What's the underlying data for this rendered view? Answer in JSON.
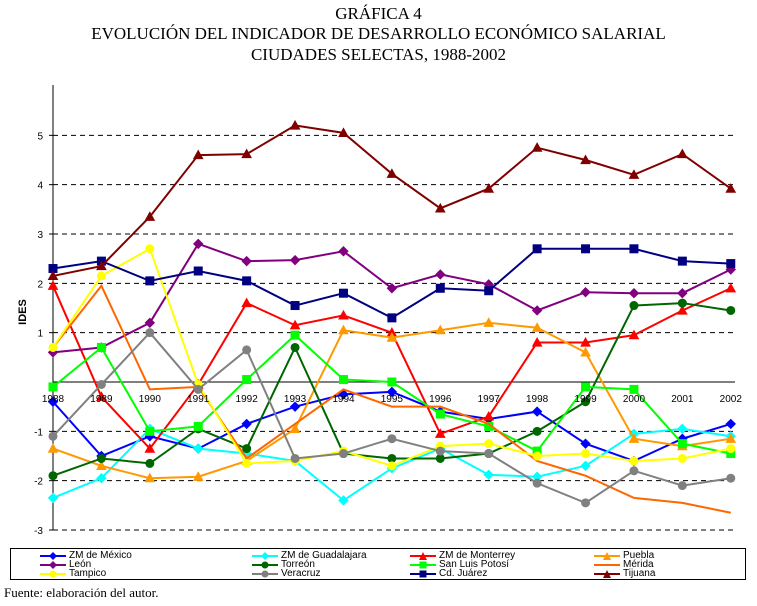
{
  "header": {
    "line1": "GRÁFICA 4",
    "line2": "EVOLUCIÓN DEL INDICADOR DE DESARROLLO ECONÓMICO SALARIAL",
    "line3": "CIUDADES SELECTAS, 1988-2002"
  },
  "footer": {
    "source": "Fuente: elaboración del autor."
  },
  "chart_data": {
    "type": "line",
    "title": "EVOLUCIÓN DEL INDICADOR DE DESARROLLO ECONÓMICO SALARIAL",
    "ylabel": "IDES",
    "xlabel": "",
    "ylim": [
      -3,
      5.5
    ],
    "yticks": [
      -3,
      -2,
      -1,
      1,
      2,
      3,
      4,
      5
    ],
    "ytick_labels": [
      "-3",
      "-2",
      "-1",
      "1",
      "2",
      "3",
      "4",
      "5"
    ],
    "grid": true,
    "categories": [
      "1988",
      "1989",
      "1990",
      "1991",
      "1992",
      "1993",
      "1994",
      "1995",
      "1996",
      "1997",
      "1998",
      "1999",
      "2000",
      "2001",
      "2002"
    ],
    "series": [
      {
        "name": "ZM de México",
        "color": "#0000FF",
        "marker": "diamond",
        "values": [
          -0.4,
          -1.5,
          -1.1,
          -1.35,
          -0.85,
          -0.5,
          -0.25,
          -0.2,
          -0.6,
          -0.75,
          -0.6,
          -1.25,
          -1.6,
          -1.15,
          -0.85
        ]
      },
      {
        "name": "ZM de Guadalajara",
        "color": "#00FFFF",
        "marker": "diamond",
        "values": [
          -2.35,
          -1.95,
          -0.95,
          -1.35,
          -1.45,
          -1.6,
          -2.4,
          -1.75,
          -1.35,
          -1.88,
          -1.92,
          -1.7,
          -1.05,
          -0.95,
          -1.1
        ]
      },
      {
        "name": "ZM de Monterrey",
        "color": "#FF0000",
        "marker": "triangle",
        "values": [
          1.95,
          -0.3,
          -1.35,
          -0.05,
          1.6,
          1.15,
          1.35,
          1.0,
          -1.05,
          -0.7,
          0.8,
          0.8,
          0.95,
          1.45,
          1.9
        ]
      },
      {
        "name": "Puebla",
        "color": "#FF9900",
        "marker": "triangle",
        "values": [
          -1.35,
          -1.7,
          -1.95,
          -1.92,
          -1.6,
          -0.95,
          1.05,
          0.9,
          1.05,
          1.2,
          1.1,
          0.6,
          -1.15,
          -1.3,
          -1.15
        ]
      },
      {
        "name": "León",
        "color": "#800080",
        "marker": "diamond",
        "values": [
          0.6,
          0.7,
          1.2,
          2.8,
          2.45,
          2.47,
          2.65,
          1.9,
          2.18,
          1.98,
          1.45,
          1.82,
          1.8,
          1.8,
          2.28
        ]
      },
      {
        "name": "Torreón",
        "color": "#006600",
        "marker": "circle",
        "values": [
          -1.9,
          -1.55,
          -1.65,
          -0.95,
          -1.35,
          0.7,
          -1.45,
          -1.55,
          -1.55,
          -1.45,
          -1.0,
          -0.4,
          1.55,
          1.6,
          1.45
        ]
      },
      {
        "name": "San Luis Potosí",
        "color": "#00FF00",
        "marker": "square",
        "values": [
          -0.1,
          0.7,
          -1.0,
          -0.9,
          0.05,
          0.95,
          0.05,
          0.0,
          -0.65,
          -0.9,
          -1.4,
          -0.1,
          -0.15,
          -1.25,
          -1.45
        ]
      },
      {
        "name": "Mérida",
        "color": "#FF6600",
        "marker": "none",
        "values": [
          0.7,
          1.95,
          -0.15,
          -0.1,
          -1.55,
          -0.85,
          -0.15,
          -0.5,
          -0.5,
          -0.85,
          -1.6,
          -1.9,
          -2.35,
          -2.45,
          -2.65
        ]
      },
      {
        "name": "Tampico",
        "color": "#FFFF00",
        "marker": "circle",
        "values": [
          0.7,
          2.15,
          2.7,
          -0.05,
          -1.65,
          -1.6,
          -1.4,
          -1.7,
          -1.3,
          -1.25,
          -1.5,
          -1.45,
          -1.6,
          -1.55,
          -1.35
        ]
      },
      {
        "name": "Veracruz",
        "color": "#808080",
        "marker": "circle",
        "values": [
          -1.1,
          -0.05,
          1.0,
          -0.15,
          0.65,
          -1.55,
          -1.45,
          -1.15,
          -1.4,
          -1.45,
          -2.05,
          -2.45,
          -1.8,
          -2.1,
          -1.95
        ]
      },
      {
        "name": "Cd. Juárez",
        "color": "#000080",
        "marker": "square",
        "values": [
          2.3,
          2.45,
          2.05,
          2.25,
          2.05,
          1.55,
          1.8,
          1.3,
          1.9,
          1.85,
          2.7,
          2.7,
          2.7,
          2.45,
          2.4
        ]
      },
      {
        "name": "Tijuana",
        "color": "#800000",
        "marker": "triangle",
        "values": [
          2.15,
          2.35,
          3.35,
          4.6,
          4.62,
          5.2,
          5.05,
          4.22,
          3.52,
          3.92,
          4.75,
          4.5,
          4.2,
          4.62,
          3.92
        ]
      }
    ]
  }
}
